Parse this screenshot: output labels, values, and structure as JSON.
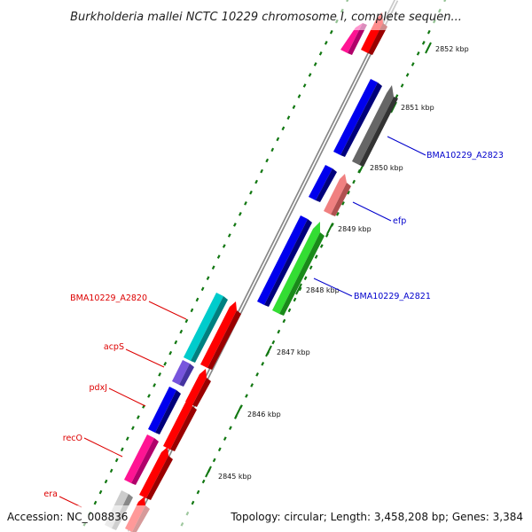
{
  "map": {
    "title": "Burkholderia mallei NCTC 10229 chromosome I, complete sequen...",
    "accession": "Accession: NC_008836",
    "summary": "Topology: circular; Length: 3,458,208 bp; Genes: 3,384"
  },
  "scale": {
    "unit": "kbp",
    "tick_labels": [
      "2852 kbp",
      "2851 kbp",
      "2850 kbp",
      "2849 kbp",
      "2848 kbp",
      "2847 kbp",
      "2846 kbp",
      "2845 kbp"
    ]
  },
  "features": {
    "reverse_track": [
      {
        "color": "#ff1493",
        "shade": "#b0006a"
      },
      {
        "color": "#0000ee",
        "shade": "#00007a"
      },
      {
        "color": "#0000ee",
        "shade": "#00007a"
      },
      {
        "color": "#0000ee",
        "shade": "#00007a"
      },
      {
        "color": "#00cccc",
        "shade": "#008080"
      },
      {
        "color": "#7755dd",
        "shade": "#4433a0"
      },
      {
        "color": "#0000ee",
        "shade": "#00007a"
      },
      {
        "color": "#ff1493",
        "shade": "#b0006a"
      },
      {
        "color": "#cccccc",
        "shade": "#888888"
      }
    ],
    "forward_track": [
      {
        "color": "#ff0000",
        "shade": "#990000"
      },
      {
        "color": "#666666",
        "shade": "#333333"
      },
      {
        "color": "#f08080",
        "shade": "#b05050"
      },
      {
        "color": "#33dd33",
        "shade": "#1a8a1a"
      },
      {
        "color": "#ff0000",
        "shade": "#990000"
      },
      {
        "color": "#ff0000",
        "shade": "#990000"
      },
      {
        "color": "#ff0000",
        "shade": "#990000"
      },
      {
        "color": "#ff0000",
        "shade": "#990000"
      },
      {
        "color": "#ff0000",
        "shade": "#990000"
      },
      {
        "color": "#ff0000",
        "shade": "#990000"
      }
    ]
  },
  "labels": {
    "forward": [
      {
        "text": "BMA10229_A2823",
        "color": "#0000cc"
      },
      {
        "text": "efp",
        "color": "#0000cc"
      },
      {
        "text": "BMA10229_A2821",
        "color": "#0000cc"
      }
    ],
    "reverse": [
      {
        "text": "BMA10229_A2820",
        "color": "#dd0000"
      },
      {
        "text": "acpS",
        "color": "#dd0000"
      },
      {
        "text": "pdxJ",
        "color": "#dd0000"
      },
      {
        "text": "recO",
        "color": "#dd0000"
      },
      {
        "text": "era",
        "color": "#dd0000"
      }
    ]
  },
  "colors": {
    "backbone": "#888888",
    "tick": "#117711"
  }
}
